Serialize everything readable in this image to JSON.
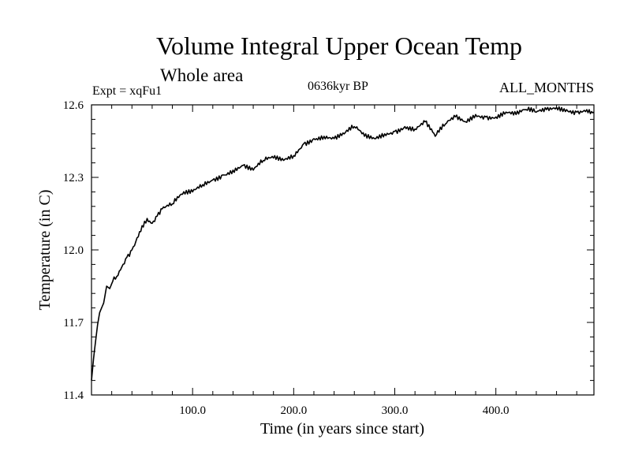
{
  "header": {
    "title": "Volume Integral Upper Ocean Temp",
    "subtitle": "Whole area",
    "experiment": "Expt = xqFu1",
    "period": "0636kyr BP",
    "months": "ALL_MONTHS"
  },
  "chart_data": {
    "type": "line",
    "title": "Volume Integral Upper Ocean Temp",
    "subtitle": "Whole area",
    "xlabel": "Time (in years since start)",
    "ylabel": "Temperature (in C)",
    "xlim": [
      0,
      497
    ],
    "ylim": [
      11.4,
      12.6
    ],
    "x_ticks": [
      100,
      200,
      300,
      400
    ],
    "x_tick_labels": [
      "100.0",
      "200.0",
      "300.0",
      "400.0"
    ],
    "y_ticks": [
      11.4,
      11.7,
      12.0,
      12.3,
      12.6
    ],
    "y_tick_labels": [
      "11.4",
      "11.7",
      "12.0",
      "12.3",
      "12.6"
    ],
    "grid": false,
    "series": [
      {
        "name": "Temperature",
        "x": [
          0,
          2,
          4,
          6,
          8,
          10,
          12,
          15,
          18,
          21,
          25,
          30,
          35,
          40,
          45,
          50,
          55,
          60,
          65,
          70,
          80,
          90,
          100,
          110,
          120,
          130,
          140,
          150,
          160,
          170,
          180,
          190,
          200,
          210,
          220,
          230,
          240,
          250,
          260,
          270,
          280,
          290,
          300,
          310,
          320,
          330,
          340,
          350,
          360,
          370,
          380,
          390,
          400,
          410,
          420,
          430,
          440,
          450,
          460,
          470,
          480,
          490,
          497
        ],
        "values": [
          11.46,
          11.55,
          11.62,
          11.69,
          11.74,
          11.76,
          11.78,
          11.85,
          11.84,
          11.87,
          11.89,
          11.93,
          11.97,
          12.0,
          12.05,
          12.1,
          12.13,
          12.11,
          12.14,
          12.17,
          12.19,
          12.23,
          12.24,
          12.27,
          12.29,
          12.31,
          12.33,
          12.35,
          12.33,
          12.37,
          12.38,
          12.37,
          12.39,
          12.44,
          12.46,
          12.47,
          12.46,
          12.48,
          12.51,
          12.47,
          12.46,
          12.48,
          12.49,
          12.51,
          12.5,
          12.53,
          12.47,
          12.52,
          12.55,
          12.53,
          12.56,
          12.55,
          12.55,
          12.57,
          12.56,
          12.58,
          12.57,
          12.58,
          12.59,
          12.58,
          12.57,
          12.58,
          12.57
        ]
      }
    ]
  }
}
